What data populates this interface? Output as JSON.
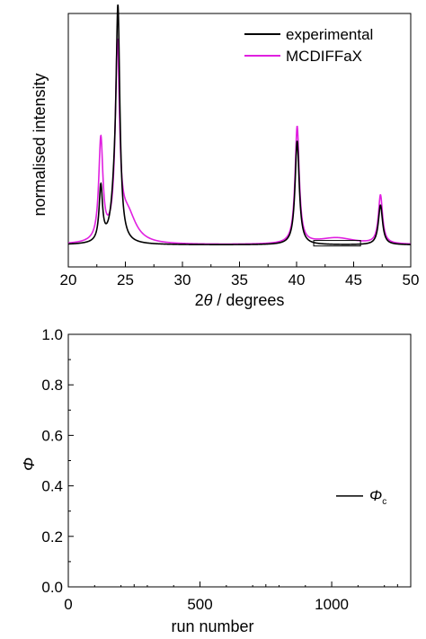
{
  "chart_data": [
    {
      "type": "line",
      "xlabel_prefix": "2",
      "xlabel_symbol": "θ",
      "xlabel_suffix": " / degrees",
      "ylabel": "normalised intensity",
      "xlim": [
        20,
        50
      ],
      "ylim": [
        -0.1,
        1.05
      ],
      "x_ticks": [
        "20",
        "25",
        "30",
        "35",
        "40",
        "45",
        "50"
      ],
      "y_ticks_labeled": false,
      "legend_position": "top-right",
      "series": [
        {
          "name": "experimental",
          "color": "#000000",
          "peaks": [
            {
              "center": 22.85,
              "width": 0.18,
              "height": 0.25
            },
            {
              "center": 24.35,
              "width": 0.2,
              "height": 1.0
            },
            {
              "center": 24.05,
              "width": 0.35,
              "height": 0.15
            },
            {
              "center": 40.05,
              "width": 0.22,
              "height": 0.47
            },
            {
              "center": 47.35,
              "width": 0.22,
              "height": 0.18
            }
          ]
        },
        {
          "name": "MCDIFFaX",
          "color": "#e020e0",
          "peaks": [
            {
              "center": 22.85,
              "width": 0.22,
              "height": 0.46
            },
            {
              "center": 24.3,
              "width": 0.22,
              "height": 0.86
            },
            {
              "center": 25.2,
              "width": 0.9,
              "height": 0.13
            },
            {
              "center": 40.05,
              "width": 0.22,
              "height": 0.53
            },
            {
              "center": 47.35,
              "width": 0.22,
              "height": 0.22
            },
            {
              "center": 43.5,
              "width": 2.0,
              "height": 0.03
            }
          ]
        }
      ],
      "baseline_bracket": {
        "x": [
          41.5,
          45.6
        ],
        "y_top": 0.02,
        "y_bottom": -0.005
      }
    },
    {
      "type": "line",
      "xlabel": "run number",
      "ylabel": "Φ",
      "xlim": [
        0,
        1300
      ],
      "ylim": [
        0.0,
        1.0
      ],
      "x_ticks": [
        "0",
        "500",
        "1000"
      ],
      "y_ticks": [
        "0.0",
        "0.2",
        "0.4",
        "0.6",
        "0.8",
        "1.0"
      ],
      "legend_position": "right",
      "series": [
        {
          "name": "Φc",
          "symbol": "Φ",
          "subscript": "c",
          "color": "#000000"
        }
      ]
    }
  ]
}
